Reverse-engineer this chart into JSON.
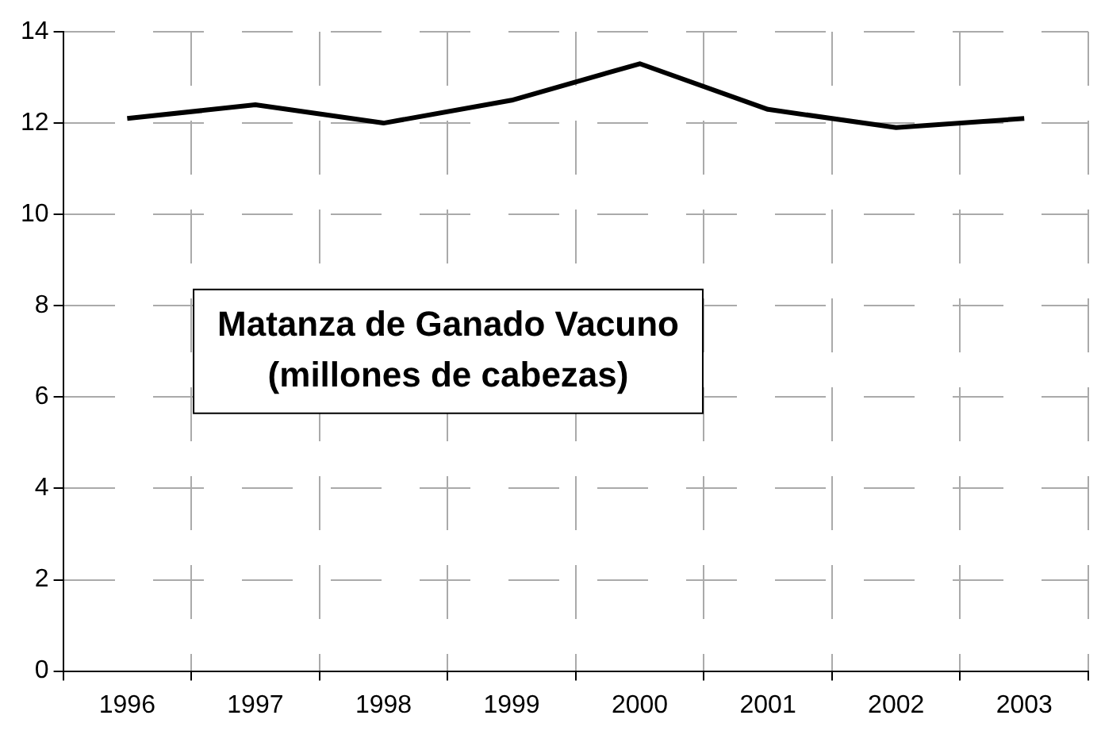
{
  "chart_data": {
    "type": "line",
    "title": "Matanza de Ganado Vacuno\n(millones de cabezas)",
    "categories": [
      "1996",
      "1997",
      "1998",
      "1999",
      "2000",
      "2001",
      "2002",
      "2003"
    ],
    "series": [
      {
        "color": "#000000",
        "values": [
          12.1,
          12.4,
          12.0,
          12.5,
          13.3,
          12.3,
          11.9,
          12.1
        ]
      }
    ],
    "ylim": [
      0,
      14
    ],
    "yticks": [
      0,
      2,
      4,
      6,
      8,
      10,
      12,
      14
    ],
    "grid": true,
    "legend": false,
    "marker": "none",
    "line_style": "solid"
  }
}
